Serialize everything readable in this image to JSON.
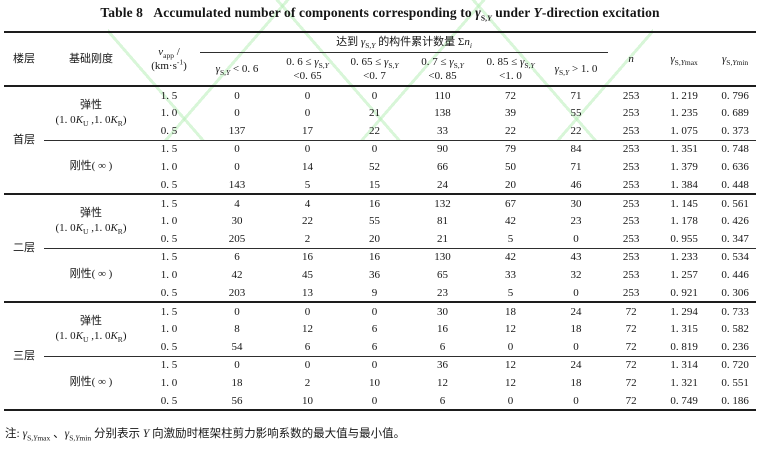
{
  "colors": {
    "text": "#161616",
    "rule": "#1d1d1d",
    "watermark_green": "rgba(165,235,165,0.55)"
  },
  "title_parts": [
    {
      "t": "Table 8   Accumulated number of components corresponding to "
    },
    {
      "t": "γ",
      "i": true
    },
    {
      "t": "S,",
      "sub": true
    },
    {
      "t": "Y",
      "sub": true,
      "i": true
    },
    {
      "t": " under "
    },
    {
      "t": "Y",
      "i": true
    },
    {
      "t": "-direction excitation"
    }
  ],
  "header": {
    "floor": "楼层",
    "stiffness": "基础刚度",
    "vapp_parts": [
      {
        "t": "v",
        "i": true
      },
      {
        "t": "app",
        "sub": true
      },
      {
        "t": " /"
      },
      {
        "br": true
      },
      {
        "t": "(km·s"
      },
      {
        "t": "-1",
        "sup": true
      },
      {
        "t": ")"
      }
    ],
    "spanner_parts": [
      {
        "t": "达到 "
      },
      {
        "t": "γ",
        "i": true
      },
      {
        "t": "S,",
        "sub": true
      },
      {
        "t": "Y",
        "sub": true,
        "i": true
      },
      {
        "t": " 的构件累计数量 Σ"
      },
      {
        "t": "n",
        "i": true
      },
      {
        "t": "i",
        "sub": true,
        "i": true
      }
    ],
    "ranges": [
      {
        "parts": [
          {
            "t": "γ",
            "i": true
          },
          {
            "t": "S,",
            "sub": true
          },
          {
            "t": "Y",
            "sub": true,
            "i": true
          },
          {
            "t": " < 0. 6"
          }
        ]
      },
      {
        "parts": [
          {
            "t": "0. 6 ≤ "
          },
          {
            "t": "γ",
            "i": true
          },
          {
            "t": "S,",
            "sub": true
          },
          {
            "t": "Y",
            "sub": true,
            "i": true
          },
          {
            "br": true
          },
          {
            "t": "<0. 65"
          }
        ]
      },
      {
        "parts": [
          {
            "t": "0. 65 ≤ "
          },
          {
            "t": "γ",
            "i": true
          },
          {
            "t": "S,",
            "sub": true
          },
          {
            "t": "Y",
            "sub": true,
            "i": true
          },
          {
            "br": true
          },
          {
            "t": "<0. 7"
          }
        ]
      },
      {
        "parts": [
          {
            "t": "0. 7 ≤ "
          },
          {
            "t": "γ",
            "i": true
          },
          {
            "t": "S,",
            "sub": true
          },
          {
            "t": "Y",
            "sub": true,
            "i": true
          },
          {
            "br": true
          },
          {
            "t": "<0. 85"
          }
        ]
      },
      {
        "parts": [
          {
            "t": "0. 85 ≤ "
          },
          {
            "t": "γ",
            "i": true
          },
          {
            "t": "S,",
            "sub": true
          },
          {
            "t": "Y",
            "sub": true,
            "i": true
          },
          {
            "br": true
          },
          {
            "t": "<1. 0"
          }
        ]
      },
      {
        "parts": [
          {
            "t": "γ",
            "i": true
          },
          {
            "t": "S,",
            "sub": true
          },
          {
            "t": "Y",
            "sub": true,
            "i": true
          },
          {
            "t": " > 1. 0"
          }
        ]
      }
    ],
    "n_parts": [
      {
        "t": "n",
        "i": true
      }
    ],
    "gmax_parts": [
      {
        "t": "γ",
        "i": true
      },
      {
        "t": "S,",
        "sub": true
      },
      {
        "t": "Y",
        "sub": true,
        "i": true
      },
      {
        "t": "max",
        "sub": true
      }
    ],
    "gmin_parts": [
      {
        "t": "γ",
        "i": true
      },
      {
        "t": "S,",
        "sub": true
      },
      {
        "t": "Y",
        "sub": true,
        "i": true
      },
      {
        "t": "min",
        "sub": true
      }
    ]
  },
  "stiffness_labels": {
    "elastic_parts": [
      {
        "t": "弹性"
      },
      {
        "br": true
      },
      {
        "t": "(1. 0"
      },
      {
        "t": "K",
        "i": true
      },
      {
        "t": "U",
        "sub": true
      },
      {
        "t": " ,1. 0"
      },
      {
        "t": "K",
        "i": true
      },
      {
        "t": "R",
        "sub": true
      },
      {
        "t": ")"
      }
    ],
    "rigid_parts": [
      {
        "t": "刚性( ∞ )"
      }
    ]
  },
  "floors": [
    {
      "label": "首层",
      "groups": [
        {
          "type": "elastic",
          "rows": [
            {
              "v": "1. 5",
              "cells": [
                "0",
                "0",
                "0",
                "110",
                "72",
                "71",
                "253",
                "1. 219",
                "0. 796"
              ]
            },
            {
              "v": "1. 0",
              "cells": [
                "0",
                "0",
                "21",
                "138",
                "39",
                "55",
                "253",
                "1. 235",
                "0. 689"
              ]
            },
            {
              "v": "0. 5",
              "cells": [
                "137",
                "17",
                "22",
                "33",
                "22",
                "22",
                "253",
                "1. 075",
                "0. 373"
              ]
            }
          ]
        },
        {
          "type": "rigid",
          "rows": [
            {
              "v": "1. 5",
              "cells": [
                "0",
                "0",
                "0",
                "90",
                "79",
                "84",
                "253",
                "1. 351",
                "0. 748"
              ]
            },
            {
              "v": "1. 0",
              "cells": [
                "0",
                "14",
                "52",
                "66",
                "50",
                "71",
                "253",
                "1. 379",
                "0. 636"
              ]
            },
            {
              "v": "0. 5",
              "cells": [
                "143",
                "5",
                "15",
                "24",
                "20",
                "46",
                "253",
                "1. 384",
                "0. 448"
              ]
            }
          ]
        }
      ]
    },
    {
      "label": "二层",
      "groups": [
        {
          "type": "elastic",
          "rows": [
            {
              "v": "1. 5",
              "cells": [
                "4",
                "4",
                "16",
                "132",
                "67",
                "30",
                "253",
                "1. 145",
                "0. 561"
              ]
            },
            {
              "v": "1. 0",
              "cells": [
                "30",
                "22",
                "55",
                "81",
                "42",
                "23",
                "253",
                "1. 178",
                "0. 426"
              ]
            },
            {
              "v": "0. 5",
              "cells": [
                "205",
                "2",
                "20",
                "21",
                "5",
                "0",
                "253",
                "0. 955",
                "0. 347"
              ]
            }
          ]
        },
        {
          "type": "rigid",
          "rows": [
            {
              "v": "1. 5",
              "cells": [
                "6",
                "16",
                "16",
                "130",
                "42",
                "43",
                "253",
                "1. 233",
                "0. 534"
              ]
            },
            {
              "v": "1. 0",
              "cells": [
                "42",
                "45",
                "36",
                "65",
                "33",
                "32",
                "253",
                "1. 257",
                "0. 446"
              ]
            },
            {
              "v": "0. 5",
              "cells": [
                "203",
                "13",
                "9",
                "23",
                "5",
                "0",
                "253",
                "0. 921",
                "0. 306"
              ]
            }
          ]
        }
      ]
    },
    {
      "label": "三层",
      "groups": [
        {
          "type": "elastic",
          "rows": [
            {
              "v": "1. 5",
              "cells": [
                "0",
                "0",
                "0",
                "30",
                "18",
                "24",
                "72",
                "1. 294",
                "0. 733"
              ]
            },
            {
              "v": "1. 0",
              "cells": [
                "8",
                "12",
                "6",
                "16",
                "12",
                "18",
                "72",
                "1. 315",
                "0. 582"
              ]
            },
            {
              "v": "0. 5",
              "cells": [
                "54",
                "6",
                "6",
                "6",
                "0",
                "0",
                "72",
                "0. 819",
                "0. 236"
              ]
            }
          ]
        },
        {
          "type": "rigid",
          "rows": [
            {
              "v": "1. 5",
              "cells": [
                "0",
                "0",
                "0",
                "36",
                "12",
                "24",
                "72",
                "1. 314",
                "0. 720"
              ]
            },
            {
              "v": "1. 0",
              "cells": [
                "18",
                "2",
                "10",
                "12",
                "12",
                "18",
                "72",
                "1. 321",
                "0. 551"
              ]
            },
            {
              "v": "0. 5",
              "cells": [
                "56",
                "10",
                "0",
                "6",
                "0",
                "0",
                "72",
                "0. 749",
                "0. 186"
              ]
            }
          ]
        }
      ]
    }
  ],
  "note_parts": [
    {
      "t": "注: "
    },
    {
      "t": "γ",
      "i": true
    },
    {
      "t": "S,",
      "sub": true
    },
    {
      "t": "Y",
      "sub": true,
      "i": true
    },
    {
      "t": "max",
      "sub": true
    },
    {
      "t": " 、"
    },
    {
      "t": "γ",
      "i": true
    },
    {
      "t": "S,",
      "sub": true
    },
    {
      "t": "Y",
      "sub": true,
      "i": true
    },
    {
      "t": "min",
      "sub": true
    },
    {
      "t": " 分别表示 "
    },
    {
      "t": "Y",
      "i": true
    },
    {
      "t": " 向激励时框架柱剪力影响系数的最大值与最小值。"
    }
  ]
}
